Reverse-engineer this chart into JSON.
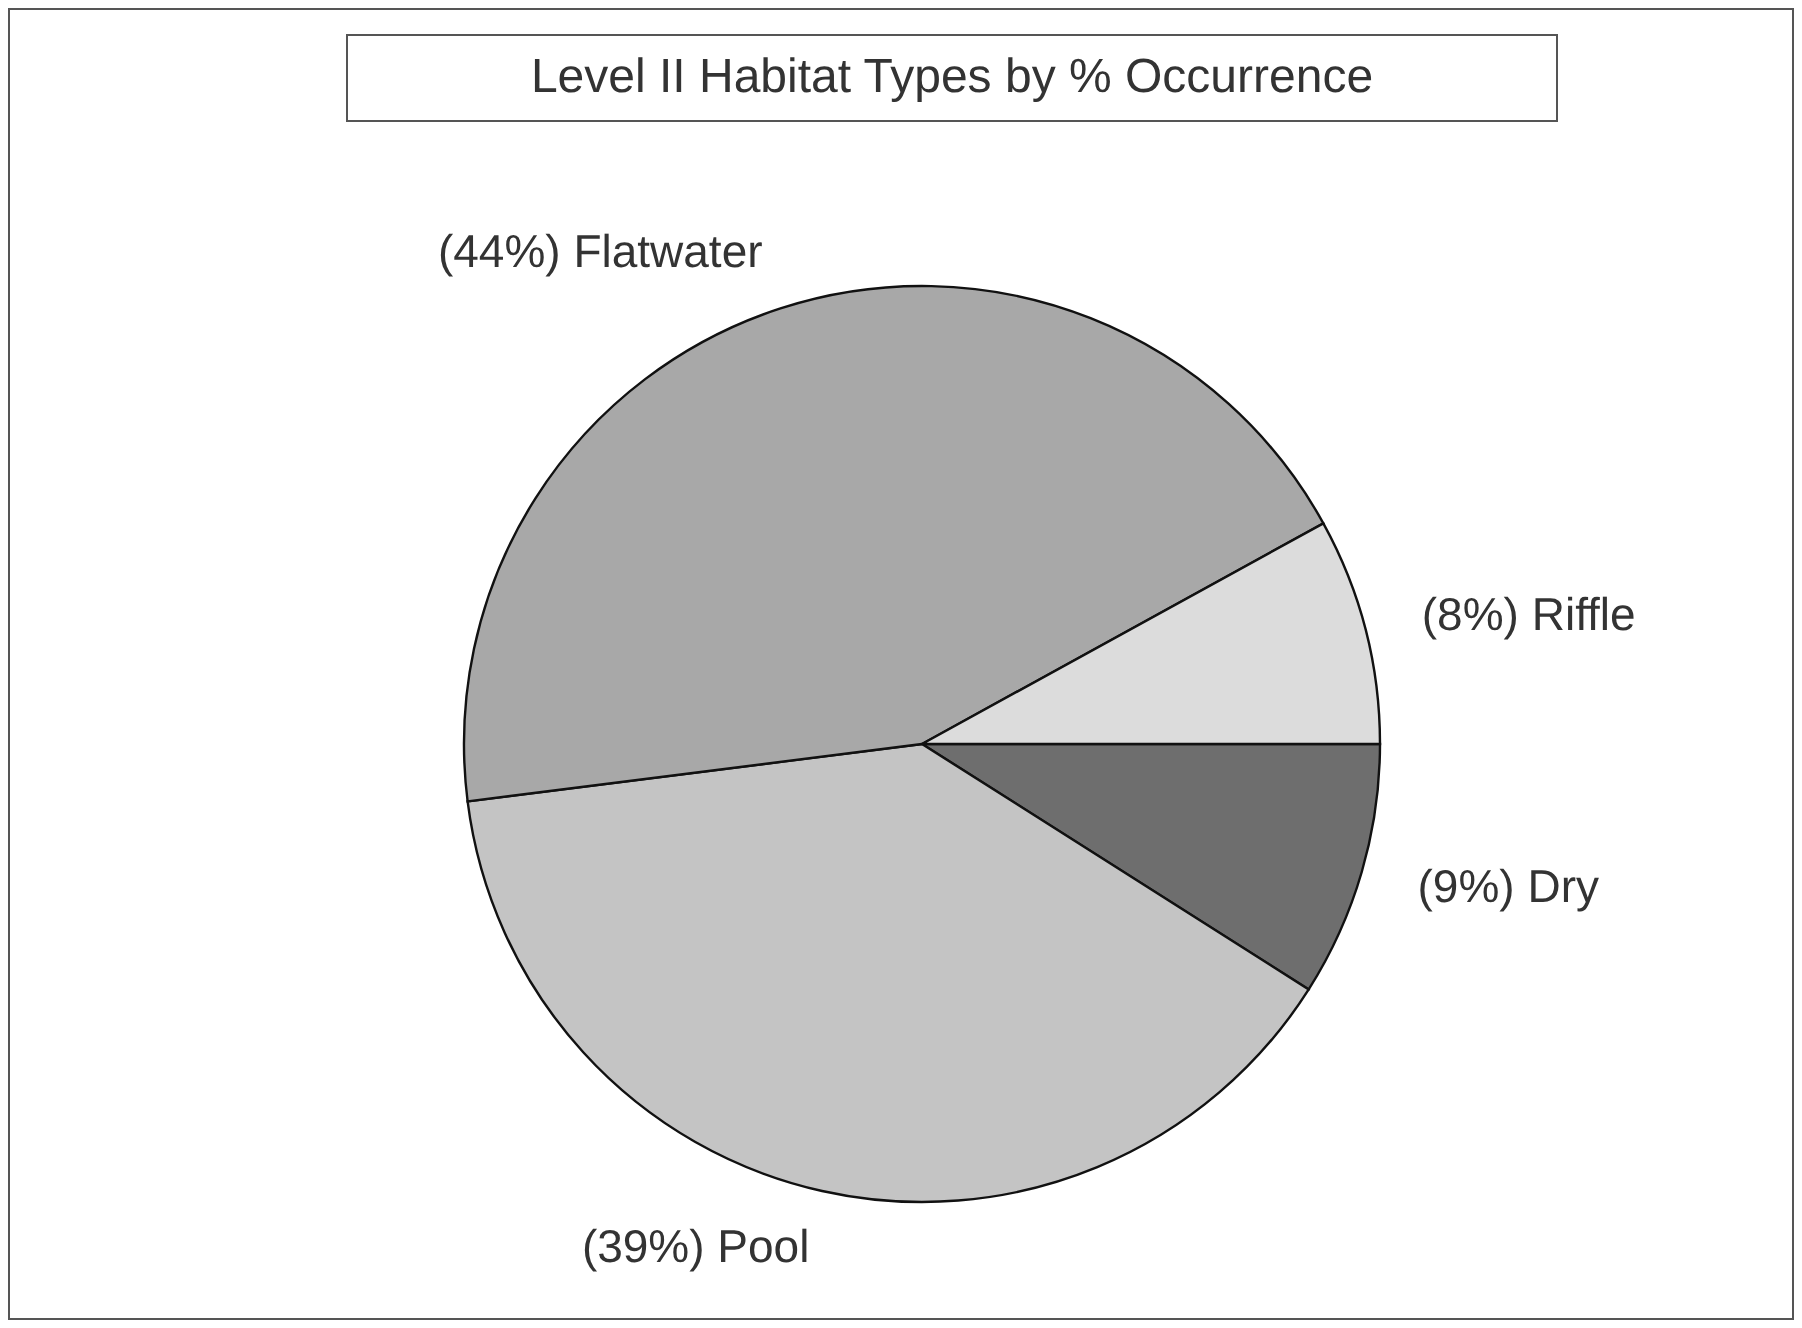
{
  "chart_data": {
    "type": "pie",
    "title": "Level II Habitat Types by % Occurrence",
    "categories": [
      "(9%) Dry",
      "(39%) Pool",
      "(44%) Flatwater",
      "(8%) Riffle"
    ],
    "values": [
      9,
      39,
      44,
      8
    ],
    "colors": [
      "#6e6e6e",
      "#c4c4c4",
      "#a8a8a8",
      "#dcdcdc"
    ]
  }
}
